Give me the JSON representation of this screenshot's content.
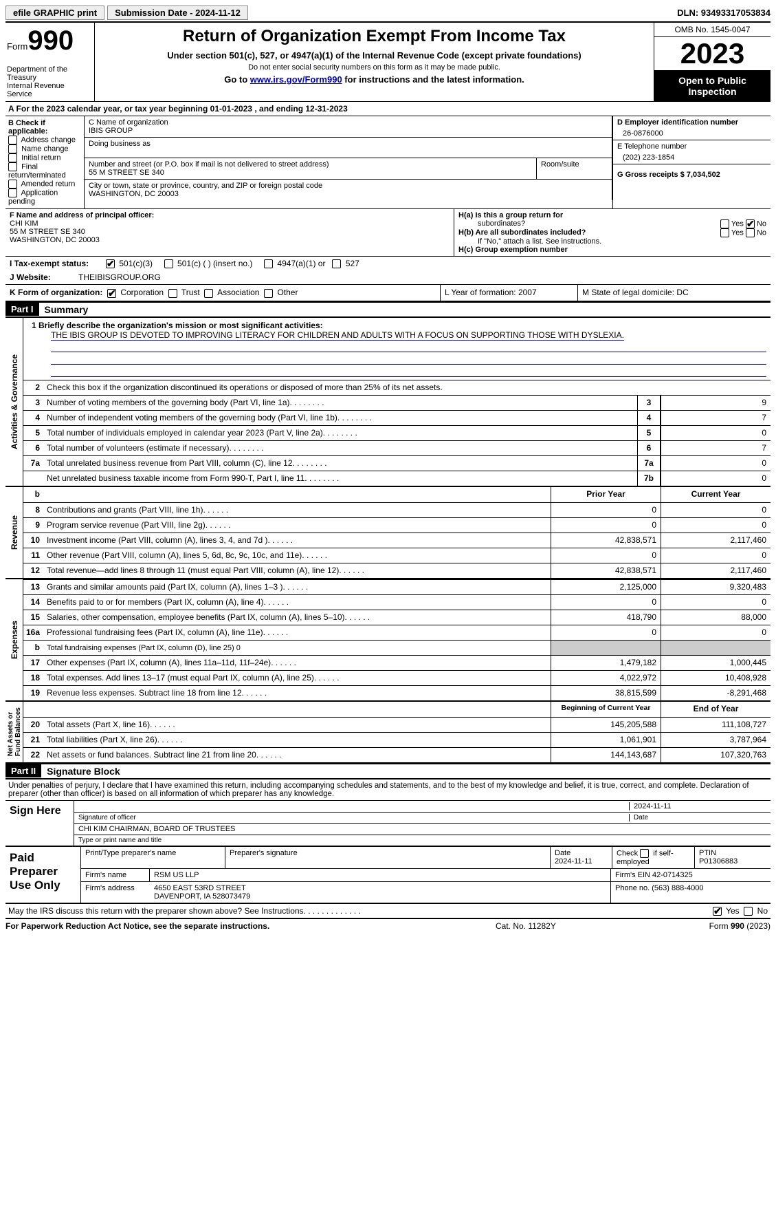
{
  "topbar": {
    "efile": "efile GRAPHIC print",
    "submission_label": "Submission Date - 2024-11-12",
    "dln_label": "DLN: 93493317053834"
  },
  "header": {
    "form_word": "Form",
    "form_num": "990",
    "dept": "Department of the Treasury",
    "irs": "Internal Revenue Service",
    "title": "Return of Organization Exempt From Income Tax",
    "sub1": "Under section 501(c), 527, or 4947(a)(1) of the Internal Revenue Code (except private foundations)",
    "sub2": "Do not enter social security numbers on this form as it may be made public.",
    "sub3_pre": "Go to ",
    "sub3_link": "www.irs.gov/Form990",
    "sub3_post": " for instructions and the latest information.",
    "omb": "OMB No. 1545-0047",
    "year": "2023",
    "open": "Open to Public Inspection"
  },
  "rowA": "A For the 2023 calendar year, or tax year beginning 01-01-2023    , and ending 12-31-2023",
  "colB": {
    "hdr": "B Check if applicable:",
    "items": [
      "Address change",
      "Name change",
      "Initial return",
      "Final return/terminated",
      "Amended return",
      "Application pending"
    ]
  },
  "colC": {
    "name_lbl": "C Name of organization",
    "name_val": "IBIS GROUP",
    "dba_lbl": "Doing business as",
    "addr_lbl": "Number and street (or P.O. box if mail is not delivered to street address)",
    "addr_val": "55 M STREET SE 340",
    "room_lbl": "Room/suite",
    "city_lbl": "City or town, state or province, country, and ZIP or foreign postal code",
    "city_val": "WASHINGTON, DC  20003"
  },
  "colD": {
    "ein_lbl": "D Employer identification number",
    "ein_val": "26-0876000",
    "tel_lbl": "E Telephone number",
    "tel_val": "(202) 223-1854",
    "gross_lbl": "G Gross receipts $ 7,034,502"
  },
  "F": {
    "lbl": "F  Name and address of principal officer:",
    "l1": "CHI KIM",
    "l2": "55 M STREET SE 340",
    "l3": "WASHINGTON, DC  20003"
  },
  "H": {
    "a": "H(a)  Is this a group return for",
    "a2": "subordinates?",
    "b": "H(b)  Are all subordinates included?",
    "note": "If \"No,\" attach a list. See instructions.",
    "c": "H(c)  Group exemption number",
    "yes": "Yes",
    "no": "No"
  },
  "I": {
    "lbl": "I    Tax-exempt status:",
    "o1": "501(c)(3)",
    "o2": "501(c) (  ) (insert no.)",
    "o3": "4947(a)(1) or",
    "o4": "527"
  },
  "J": {
    "lbl": "J    Website:",
    "val": "THEIBISGROUP.ORG"
  },
  "K": {
    "lbl": "K Form of organization:",
    "o1": "Corporation",
    "o2": "Trust",
    "o3": "Association",
    "o4": "Other"
  },
  "L": "L Year of formation: 2007",
  "M": "M State of legal domicile: DC",
  "part1": {
    "hdr": "Part I",
    "title": "Summary"
  },
  "summary": {
    "side1": "Activities & Governance",
    "mission_lbl": "1   Briefly describe the organization's mission or most significant activities:",
    "mission_txt": "THE IBIS GROUP IS DEVOTED TO IMPROVING LITERACY FOR CHILDREN AND ADULTS WITH A FOCUS ON SUPPORTING THOSE WITH DYSLEXIA.",
    "l2": "Check this box         if the organization discontinued its operations or disposed of more than 25% of its net assets.",
    "rows_gov": [
      {
        "n": "3",
        "t": "Number of voting members of the governing body (Part VI, line 1a)",
        "bn": "3",
        "v": "9"
      },
      {
        "n": "4",
        "t": "Number of independent voting members of the governing body (Part VI, line 1b)",
        "bn": "4",
        "v": "7"
      },
      {
        "n": "5",
        "t": "Total number of individuals employed in calendar year 2023 (Part V, line 2a)",
        "bn": "5",
        "v": "0"
      },
      {
        "n": "6",
        "t": "Total number of volunteers (estimate if necessary)",
        "bn": "6",
        "v": "7"
      },
      {
        "n": "7a",
        "t": "Total unrelated business revenue from Part VIII, column (C), line 12",
        "bn": "7a",
        "v": "0"
      },
      {
        "n": "",
        "t": "Net unrelated business taxable income from Form 990-T, Part I, line 11",
        "bn": "7b",
        "v": "0"
      }
    ],
    "side2": "Revenue",
    "py": "Prior Year",
    "cy": "Current Year",
    "rows_rev": [
      {
        "n": "8",
        "t": "Contributions and grants (Part VIII, line 1h)",
        "py": "0",
        "cy": "0"
      },
      {
        "n": "9",
        "t": "Program service revenue (Part VIII, line 2g)",
        "py": "0",
        "cy": "0"
      },
      {
        "n": "10",
        "t": "Investment income (Part VIII, column (A), lines 3, 4, and 7d )",
        "py": "42,838,571",
        "cy": "2,117,460"
      },
      {
        "n": "11",
        "t": "Other revenue (Part VIII, column (A), lines 5, 6d, 8c, 9c, 10c, and 11e)",
        "py": "0",
        "cy": "0"
      },
      {
        "n": "12",
        "t": "Total revenue—add lines 8 through 11 (must equal Part VIII, column (A), line 12)",
        "py": "42,838,571",
        "cy": "2,117,460"
      }
    ],
    "side3": "Expenses",
    "rows_exp": [
      {
        "n": "13",
        "t": "Grants and similar amounts paid (Part IX, column (A), lines 1–3 )",
        "py": "2,125,000",
        "cy": "9,320,483"
      },
      {
        "n": "14",
        "t": "Benefits paid to or for members (Part IX, column (A), line 4)",
        "py": "0",
        "cy": "0"
      },
      {
        "n": "15",
        "t": "Salaries, other compensation, employee benefits (Part IX, column (A), lines 5–10)",
        "py": "418,790",
        "cy": "88,000"
      },
      {
        "n": "16a",
        "t": "Professional fundraising fees (Part IX, column (A), line 11e)",
        "py": "0",
        "cy": "0"
      },
      {
        "n": "b",
        "t": "Total fundraising expenses (Part IX, column (D), line 25) 0",
        "py": "",
        "cy": "",
        "shade": true,
        "small": true
      },
      {
        "n": "17",
        "t": "Other expenses (Part IX, column (A), lines 11a–11d, 11f–24e)",
        "py": "1,479,182",
        "cy": "1,000,445"
      },
      {
        "n": "18",
        "t": "Total expenses. Add lines 13–17 (must equal Part IX, column (A), line 25)",
        "py": "4,022,972",
        "cy": "10,408,928"
      },
      {
        "n": "19",
        "t": "Revenue less expenses. Subtract line 18 from line 12",
        "py": "38,815,599",
        "cy": "-8,291,468"
      }
    ],
    "side4": "Net Assets or\nFund Balances",
    "boy": "Beginning of Current Year",
    "eoy": "End of Year",
    "rows_net": [
      {
        "n": "20",
        "t": "Total assets (Part X, line 16)",
        "py": "145,205,588",
        "cy": "111,108,727"
      },
      {
        "n": "21",
        "t": "Total liabilities (Part X, line 26)",
        "py": "1,061,901",
        "cy": "3,787,964"
      },
      {
        "n": "22",
        "t": "Net assets or fund balances. Subtract line 21 from line 20",
        "py": "144,143,687",
        "cy": "107,320,763"
      }
    ]
  },
  "part2": {
    "hdr": "Part II",
    "title": "Signature Block"
  },
  "sig": {
    "decl": "Under penalties of perjury, I declare that I have examined this return, including accompanying schedules and statements, and to the best of my knowledge and belief, it is true, correct, and complete. Declaration of preparer (other than officer) is based on all information of which preparer has any knowledge.",
    "sign_here": "Sign Here",
    "date": "2024-11-11",
    "sig_of": "Signature of officer",
    "date_lbl": "Date",
    "name": "CHI KIM  CHAIRMAN, BOARD OF TRUSTEES",
    "type_lbl": "Type or print name and title"
  },
  "prep": {
    "hdr": "Paid Preparer Use Only",
    "c1": "Print/Type preparer's name",
    "c2": "Preparer's signature",
    "c3_lbl": "Date",
    "c3_val": "2024-11-11",
    "c4": "Check         if self-employed",
    "c5_lbl": "PTIN",
    "c5_val": "P01306883",
    "firm_lbl": "Firm's name",
    "firm_val": "RSM US LLP",
    "ein": "Firm's EIN  42-0714325",
    "addr_lbl": "Firm's address",
    "addr1": "4650 EAST 53RD STREET",
    "addr2": "DAVENPORT, IA  528073479",
    "phone": "Phone no. (563) 888-4000"
  },
  "discuss": {
    "q": "May the IRS discuss this return with the preparer shown above? See Instructions.",
    "yes": "Yes",
    "no": "No"
  },
  "footer": {
    "l": "For Paperwork Reduction Act Notice, see the separate instructions.",
    "m": "Cat. No. 11282Y",
    "r_pre": "Form ",
    "r_b": "990",
    "r_post": " (2023)"
  }
}
